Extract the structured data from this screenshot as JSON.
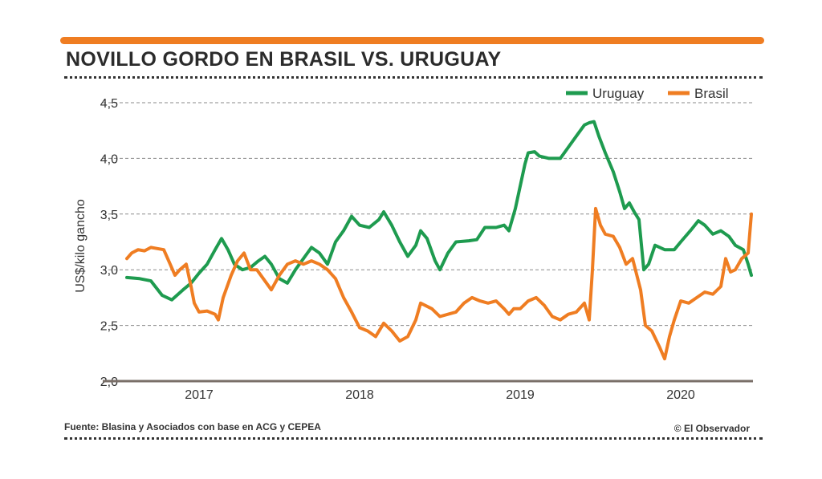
{
  "title": "NOVILLO GORDO EN BRASIL VS. URUGUAY",
  "source": "Fuente: Blasina y Asociados con base en ACG y CEPEA",
  "credit": "© El Observador",
  "colors": {
    "accent": "#ef7d22",
    "uruguay": "#1e9b4f",
    "brasil": "#ef7d22"
  },
  "chart_data": {
    "type": "line",
    "title": "NOVILLO GORDO EN BRASIL VS. URUGUAY",
    "ylabel": "US$/kilo gancho",
    "xlabel": "",
    "ylim": [
      2.0,
      4.5
    ],
    "y_ticks": [
      2.0,
      2.5,
      3.0,
      3.5,
      4.0,
      4.5
    ],
    "y_tick_labels": [
      "2,0",
      "2,5",
      "3,0",
      "3,5",
      "4,0",
      "4,5"
    ],
    "xlim": [
      2016.55,
      2020.45
    ],
    "x_ticks": [
      2017,
      2018,
      2019,
      2020
    ],
    "x_tick_labels": [
      "2017",
      "2018",
      "2019",
      "2020"
    ],
    "grid": "horizontal dashed",
    "legend": "top-right",
    "series": [
      {
        "name": "Uruguay",
        "color": "#1e9b4f",
        "points": [
          [
            2016.55,
            2.93
          ],
          [
            2016.63,
            2.92
          ],
          [
            2016.7,
            2.9
          ],
          [
            2016.77,
            2.77
          ],
          [
            2016.83,
            2.73
          ],
          [
            2016.9,
            2.82
          ],
          [
            2016.95,
            2.88
          ],
          [
            2017.0,
            2.97
          ],
          [
            2017.05,
            3.05
          ],
          [
            2017.1,
            3.18
          ],
          [
            2017.14,
            3.28
          ],
          [
            2017.18,
            3.18
          ],
          [
            2017.22,
            3.05
          ],
          [
            2017.27,
            3.0
          ],
          [
            2017.32,
            3.02
          ],
          [
            2017.37,
            3.08
          ],
          [
            2017.41,
            3.12
          ],
          [
            2017.45,
            3.05
          ],
          [
            2017.5,
            2.92
          ],
          [
            2017.55,
            2.88
          ],
          [
            2017.6,
            3.0
          ],
          [
            2017.65,
            3.1
          ],
          [
            2017.7,
            3.2
          ],
          [
            2017.75,
            3.15
          ],
          [
            2017.8,
            3.05
          ],
          [
            2017.85,
            3.25
          ],
          [
            2017.9,
            3.35
          ],
          [
            2017.95,
            3.48
          ],
          [
            2018.0,
            3.4
          ],
          [
            2018.06,
            3.38
          ],
          [
            2018.12,
            3.45
          ],
          [
            2018.15,
            3.52
          ],
          [
            2018.2,
            3.4
          ],
          [
            2018.25,
            3.25
          ],
          [
            2018.3,
            3.12
          ],
          [
            2018.35,
            3.22
          ],
          [
            2018.38,
            3.35
          ],
          [
            2018.42,
            3.28
          ],
          [
            2018.47,
            3.08
          ],
          [
            2018.5,
            3.0
          ],
          [
            2018.55,
            3.15
          ],
          [
            2018.6,
            3.25
          ],
          [
            2018.68,
            3.26
          ],
          [
            2018.73,
            3.27
          ],
          [
            2018.78,
            3.38
          ],
          [
            2018.85,
            3.38
          ],
          [
            2018.9,
            3.4
          ],
          [
            2018.93,
            3.35
          ],
          [
            2018.97,
            3.55
          ],
          [
            2019.0,
            3.75
          ],
          [
            2019.03,
            3.95
          ],
          [
            2019.05,
            4.05
          ],
          [
            2019.09,
            4.06
          ],
          [
            2019.12,
            4.02
          ],
          [
            2019.18,
            4.0
          ],
          [
            2019.25,
            4.0
          ],
          [
            2019.3,
            4.1
          ],
          [
            2019.35,
            4.2
          ],
          [
            2019.4,
            4.3
          ],
          [
            2019.43,
            4.32
          ],
          [
            2019.46,
            4.33
          ],
          [
            2019.49,
            4.2
          ],
          [
            2019.53,
            4.05
          ],
          [
            2019.58,
            3.88
          ],
          [
            2019.62,
            3.7
          ],
          [
            2019.65,
            3.55
          ],
          [
            2019.68,
            3.6
          ],
          [
            2019.71,
            3.52
          ],
          [
            2019.74,
            3.45
          ],
          [
            2019.77,
            3.0
          ],
          [
            2019.8,
            3.05
          ],
          [
            2019.84,
            3.22
          ],
          [
            2019.9,
            3.18
          ],
          [
            2019.96,
            3.18
          ],
          [
            2020.0,
            3.25
          ],
          [
            2020.06,
            3.35
          ],
          [
            2020.11,
            3.44
          ],
          [
            2020.15,
            3.4
          ],
          [
            2020.2,
            3.32
          ],
          [
            2020.25,
            3.35
          ],
          [
            2020.3,
            3.3
          ],
          [
            2020.34,
            3.22
          ],
          [
            2020.39,
            3.18
          ],
          [
            2020.42,
            3.05
          ],
          [
            2020.44,
            2.95
          ]
        ]
      },
      {
        "name": "Brasil",
        "color": "#ef7d22",
        "points": [
          [
            2016.55,
            3.1
          ],
          [
            2016.58,
            3.15
          ],
          [
            2016.62,
            3.18
          ],
          [
            2016.66,
            3.17
          ],
          [
            2016.7,
            3.2
          ],
          [
            2016.74,
            3.19
          ],
          [
            2016.78,
            3.18
          ],
          [
            2016.82,
            3.05
          ],
          [
            2016.85,
            2.95
          ],
          [
            2016.88,
            3.0
          ],
          [
            2016.92,
            3.05
          ],
          [
            2016.95,
            2.85
          ],
          [
            2016.97,
            2.7
          ],
          [
            2017.0,
            2.62
          ],
          [
            2017.05,
            2.63
          ],
          [
            2017.1,
            2.6
          ],
          [
            2017.12,
            2.55
          ],
          [
            2017.15,
            2.75
          ],
          [
            2017.2,
            2.95
          ],
          [
            2017.24,
            3.08
          ],
          [
            2017.28,
            3.15
          ],
          [
            2017.32,
            3.0
          ],
          [
            2017.36,
            3.0
          ],
          [
            2017.41,
            2.9
          ],
          [
            2017.45,
            2.82
          ],
          [
            2017.5,
            2.95
          ],
          [
            2017.55,
            3.05
          ],
          [
            2017.6,
            3.08
          ],
          [
            2017.65,
            3.05
          ],
          [
            2017.7,
            3.08
          ],
          [
            2017.75,
            3.05
          ],
          [
            2017.8,
            3.0
          ],
          [
            2017.85,
            2.92
          ],
          [
            2017.9,
            2.75
          ],
          [
            2017.95,
            2.62
          ],
          [
            2018.0,
            2.48
          ],
          [
            2018.05,
            2.45
          ],
          [
            2018.1,
            2.4
          ],
          [
            2018.15,
            2.52
          ],
          [
            2018.2,
            2.45
          ],
          [
            2018.25,
            2.36
          ],
          [
            2018.3,
            2.4
          ],
          [
            2018.35,
            2.55
          ],
          [
            2018.38,
            2.7
          ],
          [
            2018.45,
            2.65
          ],
          [
            2018.5,
            2.58
          ],
          [
            2018.55,
            2.6
          ],
          [
            2018.6,
            2.62
          ],
          [
            2018.65,
            2.7
          ],
          [
            2018.7,
            2.75
          ],
          [
            2018.75,
            2.72
          ],
          [
            2018.8,
            2.7
          ],
          [
            2018.85,
            2.72
          ],
          [
            2018.9,
            2.65
          ],
          [
            2018.93,
            2.6
          ],
          [
            2018.96,
            2.65
          ],
          [
            2019.0,
            2.65
          ],
          [
            2019.05,
            2.72
          ],
          [
            2019.1,
            2.75
          ],
          [
            2019.15,
            2.68
          ],
          [
            2019.2,
            2.58
          ],
          [
            2019.25,
            2.55
          ],
          [
            2019.3,
            2.6
          ],
          [
            2019.35,
            2.62
          ],
          [
            2019.4,
            2.7
          ],
          [
            2019.43,
            2.55
          ],
          [
            2019.45,
            3.0
          ],
          [
            2019.47,
            3.55
          ],
          [
            2019.5,
            3.4
          ],
          [
            2019.53,
            3.32
          ],
          [
            2019.58,
            3.3
          ],
          [
            2019.62,
            3.2
          ],
          [
            2019.66,
            3.05
          ],
          [
            2019.7,
            3.1
          ],
          [
            2019.75,
            2.82
          ],
          [
            2019.78,
            2.5
          ],
          [
            2019.82,
            2.45
          ],
          [
            2019.87,
            2.3
          ],
          [
            2019.9,
            2.2
          ],
          [
            2019.93,
            2.4
          ],
          [
            2019.96,
            2.55
          ],
          [
            2020.0,
            2.72
          ],
          [
            2020.05,
            2.7
          ],
          [
            2020.1,
            2.75
          ],
          [
            2020.15,
            2.8
          ],
          [
            2020.2,
            2.78
          ],
          [
            2020.25,
            2.85
          ],
          [
            2020.28,
            3.1
          ],
          [
            2020.31,
            2.98
          ],
          [
            2020.34,
            3.0
          ],
          [
            2020.38,
            3.1
          ],
          [
            2020.42,
            3.15
          ],
          [
            2020.44,
            3.5
          ]
        ]
      }
    ]
  }
}
